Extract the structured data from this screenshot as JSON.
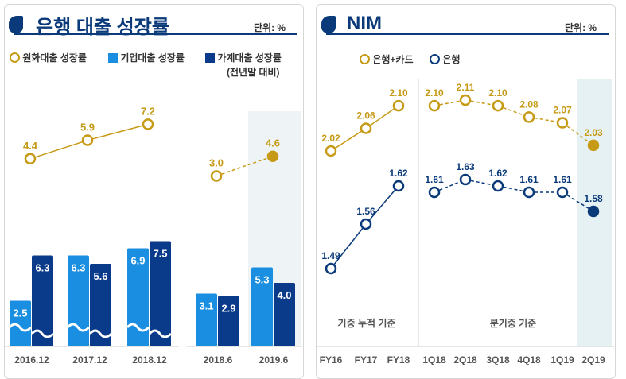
{
  "left": {
    "title": "은행 대출 성장률",
    "unit": "단위: %",
    "legend": [
      "원화대출 성장률",
      "기업대출 성장률",
      "가계대출 성장률"
    ],
    "note": "(전년말 대비)"
  },
  "right": {
    "title": "NIM",
    "unit": "단위: %",
    "legend": [
      "은행+카드",
      "은행"
    ],
    "section1": "기중 누적 기준",
    "section2": "분기중 기준"
  },
  "colors": {
    "gold": "#c79a16",
    "light": "#1a8ee0",
    "dark": "#0a3a8a",
    "navy": "#0a3a7a"
  },
  "chart_data": [
    {
      "type": "bar",
      "title": "은행 대출 성장률",
      "categories": [
        "2016.12",
        "2017.12",
        "2018.12",
        "2018.6",
        "2019.6"
      ],
      "series": [
        {
          "name": "기업대출 성장률",
          "values": [
            2.5,
            6.3,
            6.9,
            3.1,
            5.3
          ]
        },
        {
          "name": "가계대출 성장률",
          "values": [
            6.3,
            5.6,
            7.5,
            2.9,
            4.0
          ]
        },
        {
          "name": "원화대출 성장률",
          "type": "line",
          "values": [
            4.4,
            5.9,
            7.2,
            3.0,
            4.6
          ]
        }
      ]
    },
    {
      "type": "line",
      "title": "NIM",
      "categories": [
        "FY16",
        "FY17",
        "FY18",
        "1Q18",
        "2Q18",
        "3Q18",
        "4Q18",
        "1Q19",
        "2Q19"
      ],
      "series": [
        {
          "name": "은행+카드",
          "values": [
            2.02,
            2.06,
            2.1,
            2.1,
            2.11,
            2.1,
            2.08,
            2.07,
            2.03
          ]
        },
        {
          "name": "은행",
          "values": [
            1.49,
            1.56,
            1.62,
            1.61,
            1.63,
            1.62,
            1.61,
            1.61,
            1.58
          ]
        }
      ]
    }
  ]
}
